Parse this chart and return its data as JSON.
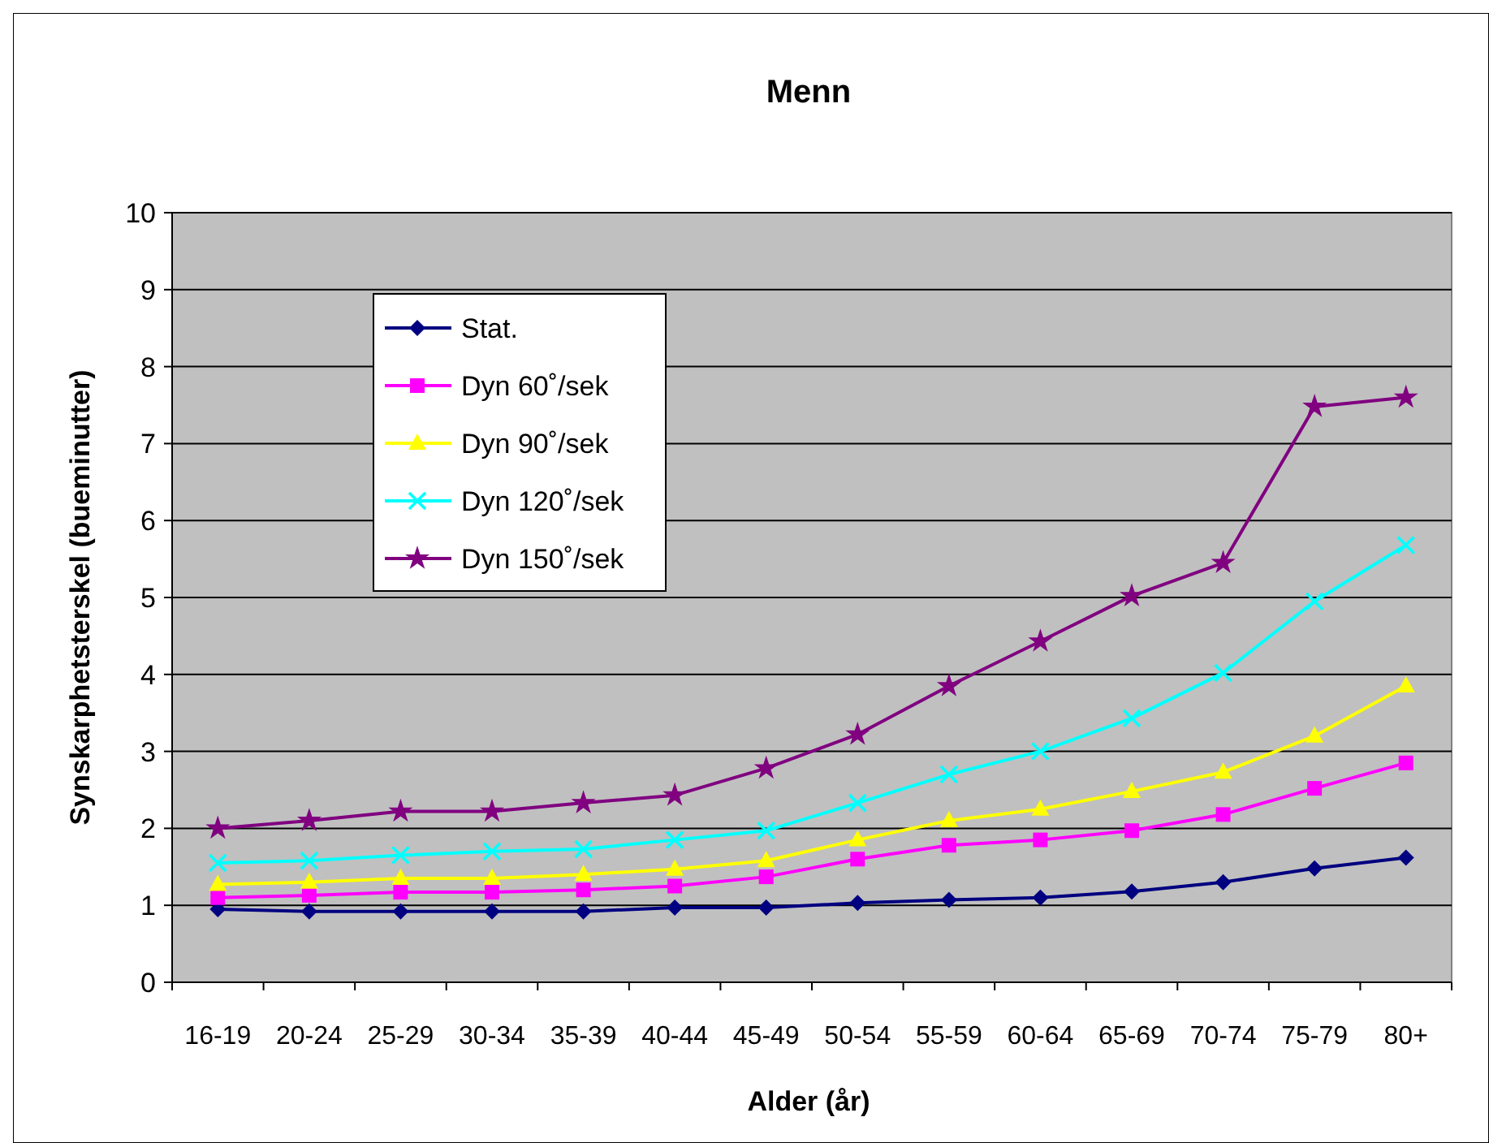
{
  "chart_data": {
    "type": "line",
    "title": "Menn",
    "xlabel": "Alder (år)",
    "ylabel": "Synskarphetsterskel (bueminutter)",
    "categories": [
      "16-19",
      "20-24",
      "25-29",
      "30-34",
      "35-39",
      "40-44",
      "45-49",
      "50-54",
      "55-59",
      "60-64",
      "65-69",
      "70-74",
      "75-79",
      "80+"
    ],
    "ylim": [
      0,
      10
    ],
    "yticks": [
      0,
      1,
      2,
      3,
      4,
      5,
      6,
      7,
      8,
      9,
      10
    ],
    "grid": "y",
    "legend": "top left",
    "line_style": "solid",
    "series": [
      {
        "name": "Stat.",
        "color": "#000080",
        "marker": "diamond",
        "values": [
          0.95,
          0.92,
          0.92,
          0.92,
          0.92,
          0.97,
          0.97,
          1.03,
          1.07,
          1.1,
          1.18,
          1.3,
          1.48,
          1.62
        ]
      },
      {
        "name": "Dyn 60˚/sek",
        "color": "#ff00ff",
        "marker": "square",
        "values": [
          1.1,
          1.13,
          1.17,
          1.17,
          1.2,
          1.25,
          1.37,
          1.6,
          1.78,
          1.85,
          1.97,
          2.18,
          2.52,
          2.85
        ]
      },
      {
        "name": "Dyn 90˚/sek",
        "color": "#ffff00",
        "marker": "triangle",
        "values": [
          1.27,
          1.3,
          1.35,
          1.35,
          1.4,
          1.47,
          1.58,
          1.85,
          2.1,
          2.25,
          2.48,
          2.73,
          3.2,
          3.85
        ]
      },
      {
        "name": "Dyn 120˚/sek",
        "color": "#00ffff",
        "marker": "cross",
        "values": [
          1.55,
          1.58,
          1.65,
          1.7,
          1.73,
          1.85,
          1.97,
          2.33,
          2.7,
          3.0,
          3.43,
          4.02,
          4.95,
          5.68
        ]
      },
      {
        "name": "Dyn 150˚/sek",
        "color": "#800080",
        "marker": "star",
        "values": [
          2.0,
          2.1,
          2.22,
          2.22,
          2.33,
          2.43,
          2.78,
          3.22,
          3.85,
          4.43,
          5.02,
          5.45,
          7.48,
          7.6
        ]
      }
    ]
  }
}
